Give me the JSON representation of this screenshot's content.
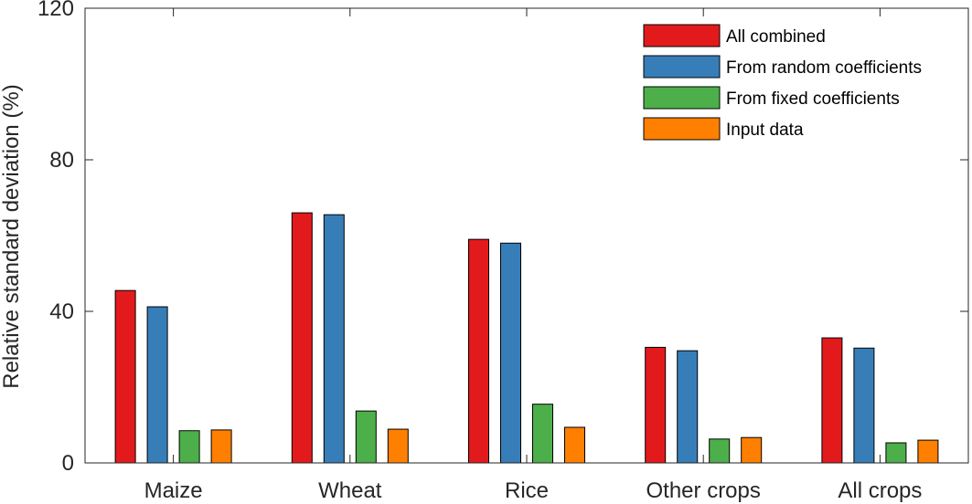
{
  "chart_data": {
    "type": "bar",
    "categories": [
      "Maize",
      "Wheat",
      "Rice",
      "Other crops",
      "All crops"
    ],
    "ylabel": "Relative standard deviation (%)",
    "xlabel": "",
    "ylim": [
      0,
      120
    ],
    "yticks": [
      0,
      40,
      80,
      120
    ],
    "grid": false,
    "legend_position": "top-right",
    "series": [
      {
        "name": "All combined",
        "color": "#e31a1c",
        "values": [
          45.5,
          66,
          59,
          30.5,
          33
        ]
      },
      {
        "name": "From random coefficients",
        "color": "#377eb8",
        "values": [
          41.2,
          65.5,
          58,
          29.6,
          30.3
        ]
      },
      {
        "name": "From fixed coefficients",
        "color": "#4daf4a",
        "values": [
          8.5,
          13.7,
          15.5,
          6.3,
          5.3
        ]
      },
      {
        "name": "Input data",
        "color": "#ff7f00",
        "values": [
          8.7,
          8.9,
          9.4,
          6.7,
          6.0
        ]
      }
    ]
  }
}
